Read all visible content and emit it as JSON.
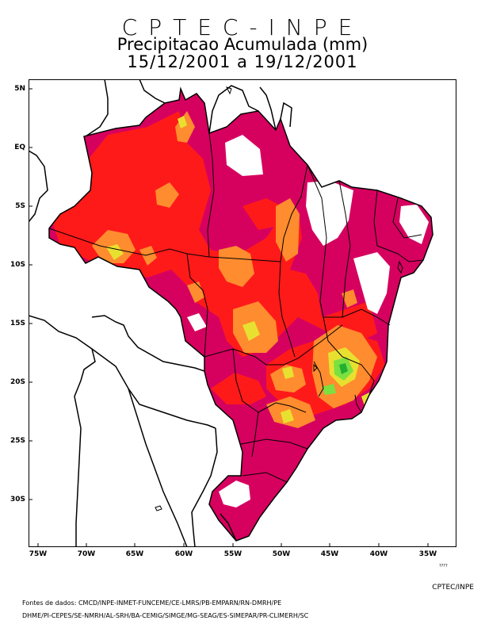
{
  "header": {
    "agency": "CPTEC-INPE",
    "product": "Precipitacao Acumulada (mm)",
    "period": "15/12/2001 a 19/12/2001"
  },
  "map": {
    "y_ticks": [
      "5N",
      "EQ",
      "5S",
      "10S",
      "15S",
      "20S",
      "25S",
      "30S"
    ],
    "x_ticks": [
      "75W",
      "70W",
      "65W",
      "60W",
      "55W",
      "50W",
      "45W",
      "40W",
      "35W"
    ],
    "signature": "????",
    "colors": {
      "magenta": "#d6005f",
      "red": "#ff1a1a",
      "orange": "#ff8c2e",
      "yellow": "#e8e030",
      "green": "#7ce040",
      "dark_green": "#22b030",
      "border": "#000000"
    }
  },
  "footer": {
    "credit": "CPTEC/INPE",
    "sources_label": "Fontes de dados:",
    "sources_line1": "CMCD/INPE-INMET-FUNCEME/CE-LMRS/PB-EMPARN/RN-DMRH/PE",
    "sources_line2": "DHME/PI-CEPES/SE-NMRH/AL-SRH/BA-CEMIG/SIMGE/MG-SEAG/ES-SIMEPAR/PR-CLIMERH/SC"
  }
}
